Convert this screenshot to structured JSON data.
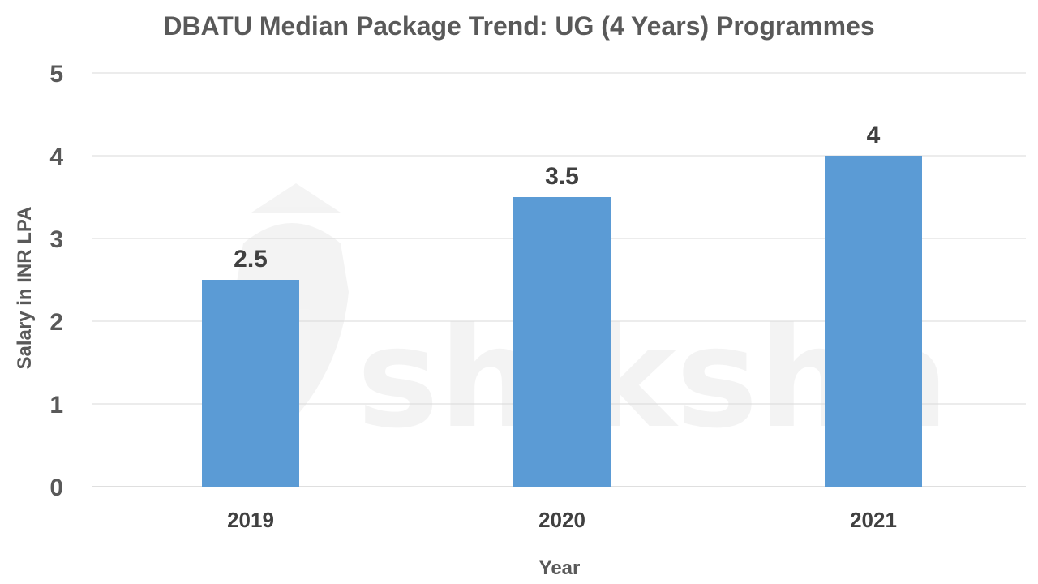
{
  "chart_data": {
    "type": "bar",
    "title": "DBATU Median Package Trend: UG (4 Years) Programmes",
    "xlabel": "Year",
    "ylabel": "Salary in INR LPA",
    "categories": [
      "2019",
      "2020",
      "2021"
    ],
    "values": [
      2.5,
      3.5,
      4
    ],
    "data_labels": [
      "2.5",
      "3.5",
      "4"
    ],
    "ylim": [
      0,
      5
    ],
    "yticks": [
      "0",
      "1",
      "2",
      "3",
      "4",
      "5"
    ],
    "grid": true,
    "legend": "none",
    "bar_color": "#5B9BD5",
    "watermark": "shiksha"
  }
}
